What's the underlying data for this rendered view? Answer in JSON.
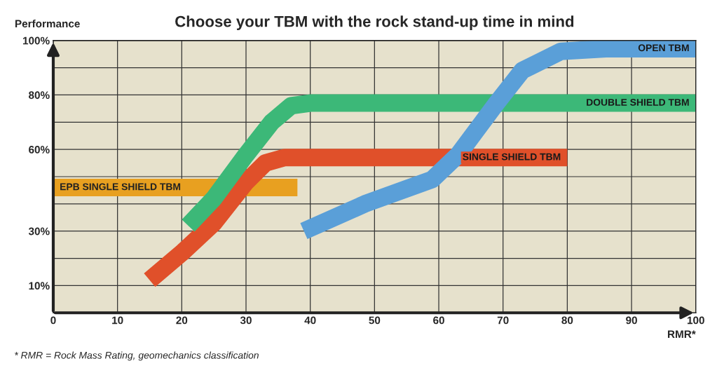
{
  "chart_data": {
    "type": "line",
    "title": "Choose your TBM with the rock stand-up time in mind",
    "ylabel": "Performance",
    "xlabel": "RMR*",
    "annotations": [
      "* RMR = Rock Mass Rating, geomechanics classification"
    ],
    "xlim": [
      0,
      100
    ],
    "ylim": [
      0,
      100
    ],
    "xticks": [
      0,
      10,
      20,
      30,
      40,
      50,
      60,
      70,
      80,
      90,
      100
    ],
    "yticks": [
      {
        "value": 10,
        "label": "10%"
      },
      {
        "value": 20,
        "label": null
      },
      {
        "value": 30,
        "label": "30%"
      },
      {
        "value": 40,
        "label": null
      },
      {
        "value": 50,
        "label": null
      },
      {
        "value": 60,
        "label": "60%"
      },
      {
        "value": 70,
        "label": null
      },
      {
        "value": 80,
        "label": "80%"
      },
      {
        "value": 90,
        "label": null
      },
      {
        "value": 100,
        "label": "100%"
      }
    ],
    "grid": true,
    "legend": false,
    "line_style": "solid",
    "marker": "none",
    "series": [
      {
        "name": "EPB SINGLE SHIELD TBM",
        "color": "#e8a020",
        "x": [
          0,
          38
        ],
        "values": [
          46,
          46
        ]
      },
      {
        "name": "SINGLE SHIELD TBM",
        "color": "#e0502a",
        "x": [
          15,
          20,
          25,
          30,
          33,
          36,
          80
        ],
        "values": [
          12,
          22,
          33,
          48,
          55,
          57,
          57
        ]
      },
      {
        "name": "DOUBLE SHIELD TBM",
        "color": "#3cb878",
        "x": [
          21,
          25,
          30,
          34,
          37,
          40,
          100
        ],
        "values": [
          32,
          42,
          58,
          70,
          76,
          77,
          77
        ]
      },
      {
        "name": "OPEN TBM",
        "color": "#5a9fd8",
        "x": [
          39,
          48.5,
          59,
          63,
          69,
          73,
          79,
          86,
          100
        ],
        "values": [
          30,
          40,
          49,
          58,
          77,
          89,
          96,
          97,
          97
        ]
      }
    ]
  }
}
